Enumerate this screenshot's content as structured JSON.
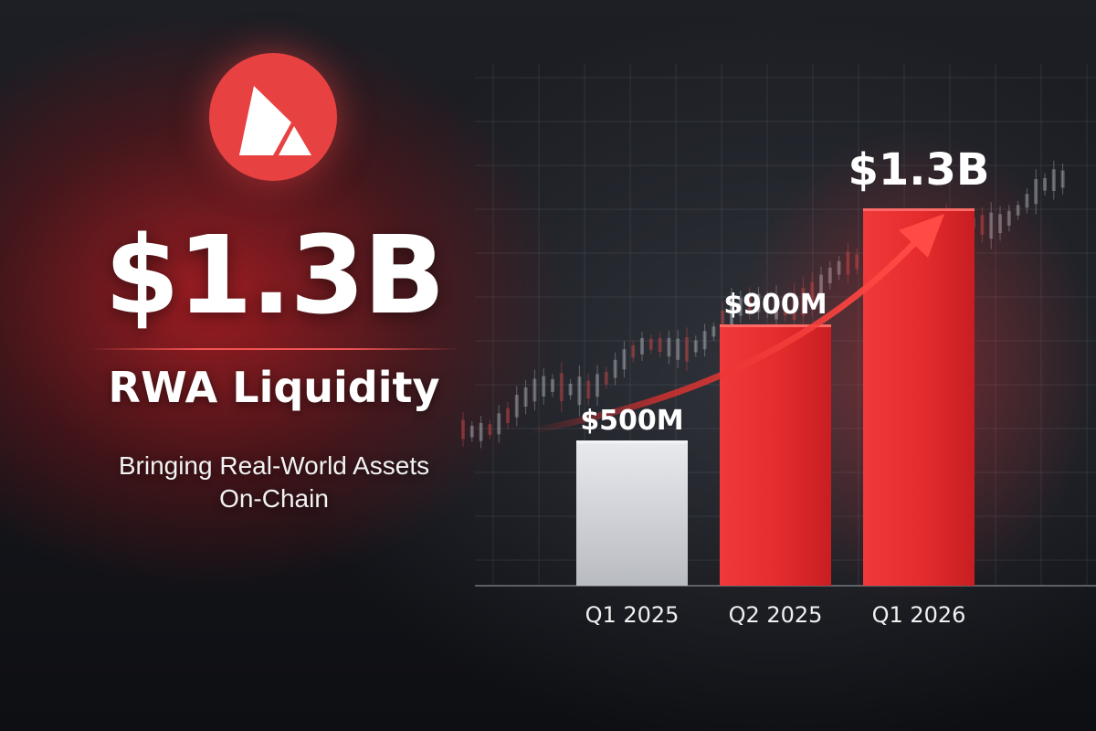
{
  "brand": {
    "logo_icon": "avalanche-logo-icon",
    "logo_color": "#e84142"
  },
  "hero": {
    "headline": "$1.3B",
    "subheadline": "RWA Liquidity",
    "tagline_line1": "Bringing Real-World Assets",
    "tagline_line2": "On-Chain"
  },
  "colors": {
    "accent_red": "#e8312f",
    "baseline_bar": "#d9dadf",
    "background": "#17181d"
  },
  "chart_data": {
    "type": "bar",
    "categories": [
      "Q1 2025",
      "Q2 2025",
      "Q1 2026"
    ],
    "values": [
      500,
      900,
      1300
    ],
    "value_labels": [
      "$500M",
      "$900M",
      "$1.3B"
    ],
    "units": "USD millions",
    "bar_colors": [
      "#d9dadf",
      "#e8312f",
      "#e8312f"
    ],
    "ylim": [
      0,
      1300
    ],
    "grid": true,
    "title": "",
    "xlabel": "",
    "ylabel": "",
    "trend_arrow": true,
    "trend_arrow_icon": "upward-trend-arrow-icon",
    "background_candlesticks": true
  }
}
